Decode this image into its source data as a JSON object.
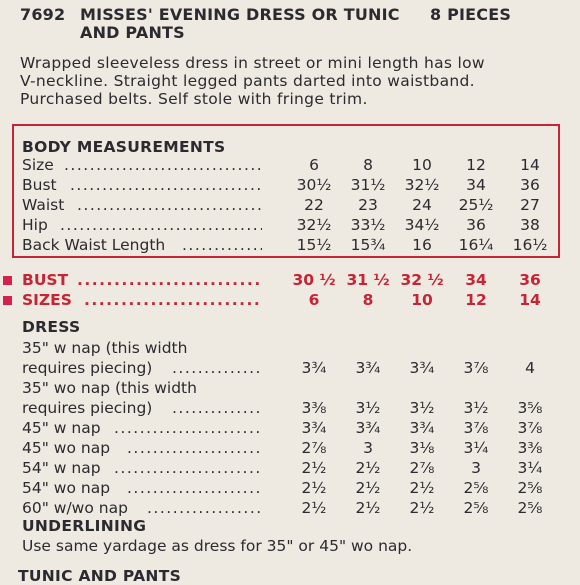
{
  "header": {
    "number": "7692",
    "title": "MISSES' EVENING DRESS OR TUNIC AND PANTS",
    "pieces": "8 PIECES"
  },
  "description": [
    "Wrapped sleeveless dress in street or mini length has low",
    "V-neckline. Straight legged pants darted into waistband.",
    "Purchased belts. Self stole with fringe trim."
  ],
  "body_measurements": {
    "title": "BODY MEASUREMENTS",
    "rows": [
      {
        "label": "Size",
        "values": [
          "6",
          "8",
          "10",
          "12",
          "14"
        ]
      },
      {
        "label": "Bust",
        "values": [
          "30½",
          "31½",
          "32½",
          "34",
          "36"
        ]
      },
      {
        "label": "Waist",
        "values": [
          "22",
          "23",
          "24",
          "25½",
          "27"
        ]
      },
      {
        "label": "Hip",
        "values": [
          "32½",
          "33½",
          "34½",
          "36",
          "38"
        ]
      },
      {
        "label": "Back Waist Length",
        "values": [
          "15½",
          "15¾",
          "16",
          "16¼",
          "16½"
        ]
      }
    ]
  },
  "bust_row": {
    "label": "BUST",
    "values": [
      "30 ½",
      "31 ½",
      "32 ½",
      "34",
      "36"
    ]
  },
  "sizes_row": {
    "label": "SIZES",
    "values": [
      "6",
      "8",
      "10",
      "12",
      "14"
    ]
  },
  "dress": {
    "title": "DRESS",
    "rows": [
      {
        "label": "35\" w nap (this width",
        "values": []
      },
      {
        "label": "requires piecing)",
        "values": [
          "3¾",
          "3¾",
          "3¾",
          "3⅞",
          "4"
        ]
      },
      {
        "label": "35\" wo nap (this width",
        "values": []
      },
      {
        "label": "requires piecing)",
        "values": [
          "3⅜",
          "3½",
          "3½",
          "3½",
          "3⅝"
        ]
      },
      {
        "label": "45\" w nap",
        "values": [
          "3¾",
          "3¾",
          "3¾",
          "3⅞",
          "3⅞"
        ]
      },
      {
        "label": "45\" wo nap",
        "values": [
          "2⅞",
          "3",
          "3⅛",
          "3¼",
          "3⅜"
        ]
      },
      {
        "label": "54\" w nap",
        "values": [
          "2½",
          "2½",
          "2⅞",
          "3",
          "3¼"
        ]
      },
      {
        "label": "54\" wo nap",
        "values": [
          "2½",
          "2½",
          "2½",
          "2⅝",
          "2⅝"
        ]
      },
      {
        "label": "60\" w/wo nap",
        "values": [
          "2½",
          "2½",
          "2½",
          "2⅝",
          "2⅝"
        ]
      }
    ]
  },
  "underlining": {
    "title": "UNDERLINING",
    "text": "Use same yardage as dress for 35\" or 45\" wo nap."
  },
  "next_section": {
    "title": "TUNIC AND PANTS"
  }
}
